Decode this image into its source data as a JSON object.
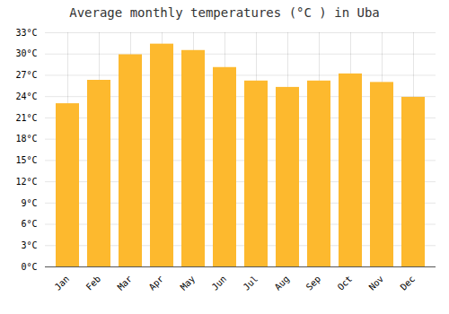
{
  "chart_data": {
    "type": "bar",
    "title": "Average monthly temperatures (°C ) in Uba",
    "categories": [
      "Jan",
      "Feb",
      "Mar",
      "Apr",
      "May",
      "Jun",
      "Jul",
      "Aug",
      "Sep",
      "Oct",
      "Nov",
      "Dec"
    ],
    "values": [
      23.0,
      26.3,
      29.9,
      31.4,
      30.5,
      28.1,
      26.2,
      25.3,
      26.2,
      27.2,
      26.0,
      23.9
    ],
    "color": "#FDB92E",
    "ylim": [
      0,
      33
    ],
    "yticks": [
      {
        "value": 0,
        "label": "0°C"
      },
      {
        "value": 3,
        "label": "3°C"
      },
      {
        "value": 6,
        "label": "6°C"
      },
      {
        "value": 9,
        "label": "9°C"
      },
      {
        "value": 12,
        "label": "12°C"
      },
      {
        "value": 15,
        "label": "15°C"
      },
      {
        "value": 18,
        "label": "18°C"
      },
      {
        "value": 21,
        "label": "21°C"
      },
      {
        "value": 24,
        "label": "24°C"
      },
      {
        "value": 27,
        "label": "27°C"
      },
      {
        "value": 30,
        "label": "30°C"
      },
      {
        "value": 33,
        "label": "33°C"
      }
    ],
    "grid": true
  }
}
